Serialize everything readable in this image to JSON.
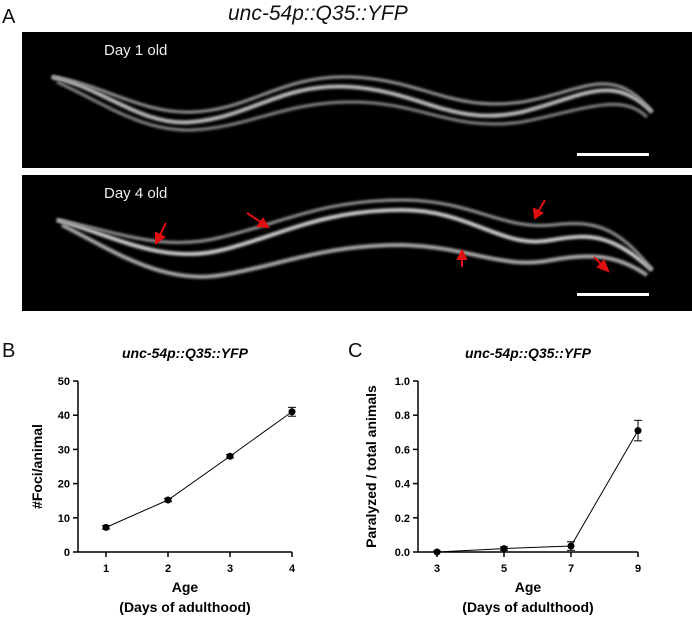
{
  "figure_title": "unc-54p::Q35::YFP",
  "panels": {
    "a": {
      "label": "A",
      "images": [
        {
          "caption": "Day 1 old"
        },
        {
          "caption": "Day 4 old"
        }
      ]
    },
    "b": {
      "label": "B"
    },
    "c": {
      "label": "C"
    }
  },
  "colors": {
    "arrow": "#e01010",
    "line": "#000000"
  },
  "chart_data": [
    {
      "type": "line",
      "title": "unc-54p::Q35::YFP",
      "xlabel": "Age",
      "xlabel2": "(Days of adulthood)",
      "ylabel": "#Foci/animal",
      "x": [
        1,
        2,
        3,
        4
      ],
      "y": [
        7.2,
        15.2,
        28,
        41
      ],
      "error": [
        0.5,
        0.5,
        0.5,
        1.3
      ],
      "xlim": [
        0.5,
        4
      ],
      "ylim": [
        0,
        50
      ],
      "xticks": [
        "1",
        "2",
        "3",
        "4"
      ],
      "yticks": [
        "0",
        "10",
        "20",
        "30",
        "40",
        "50"
      ]
    },
    {
      "type": "line",
      "title": "unc-54p::Q35::YFP",
      "xlabel": "Age",
      "xlabel2": "(Days of adulthood)",
      "ylabel": "Paralyzed / total animals",
      "x": [
        3,
        5,
        7,
        9
      ],
      "y": [
        0.0,
        0.02,
        0.035,
        0.71
      ],
      "error": [
        0.005,
        0.01,
        0.025,
        0.06
      ],
      "xlim": [
        2.6,
        9
      ],
      "ylim": [
        0,
        1.0
      ],
      "xticks": [
        "3",
        "5",
        "7",
        "9"
      ],
      "yticks": [
        "0.0",
        "0.2",
        "0.4",
        "0.6",
        "0.8",
        "1.0"
      ]
    }
  ]
}
